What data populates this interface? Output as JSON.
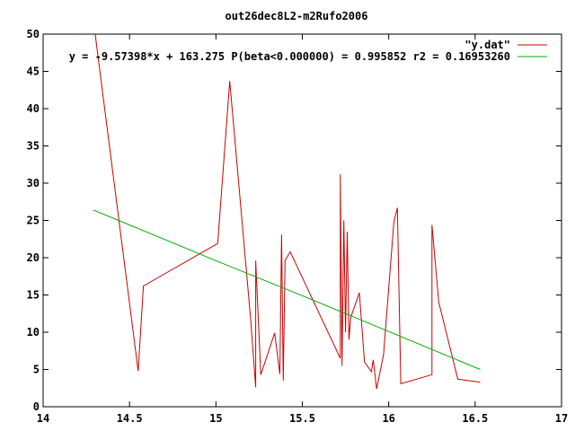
{
  "chart_data": {
    "type": "line",
    "title": "out26dec8L2-m2Rufo2006",
    "xlabel": "",
    "ylabel": "",
    "xlim": [
      14,
      17
    ],
    "ylim": [
      0,
      50
    ],
    "xticks": [
      {
        "v": 14,
        "label": "14"
      },
      {
        "v": 14.5,
        "label": "14.5"
      },
      {
        "v": 15,
        "label": "15"
      },
      {
        "v": 15.5,
        "label": "15.5"
      },
      {
        "v": 16,
        "label": "16"
      },
      {
        "v": 16.5,
        "label": "16.5"
      },
      {
        "v": 17,
        "label": "17"
      }
    ],
    "yticks": [
      {
        "v": 0,
        "label": "0"
      },
      {
        "v": 5,
        "label": "5"
      },
      {
        "v": 10,
        "label": "10"
      },
      {
        "v": 15,
        "label": "15"
      },
      {
        "v": 20,
        "label": "20"
      },
      {
        "v": 25,
        "label": "25"
      },
      {
        "v": 30,
        "label": "30"
      },
      {
        "v": 35,
        "label": "35"
      },
      {
        "v": 40,
        "label": "40"
      },
      {
        "v": 45,
        "label": "45"
      },
      {
        "v": 50,
        "label": "50"
      }
    ],
    "grid": false,
    "legend_position": "top-right",
    "series": [
      {
        "name": "\"y.dat\"",
        "color": "#cc0000",
        "points": [
          [
            14.29,
            52.0
          ],
          [
            14.55,
            4.8
          ],
          [
            14.58,
            16.2
          ],
          [
            15.01,
            21.9
          ],
          [
            15.08,
            43.7
          ],
          [
            15.2,
            12.0
          ],
          [
            15.23,
            2.6
          ],
          [
            15.23,
            19.6
          ],
          [
            15.26,
            4.3
          ],
          [
            15.34,
            9.9
          ],
          [
            15.37,
            4.4
          ],
          [
            15.38,
            23.1
          ],
          [
            15.39,
            3.5
          ],
          [
            15.4,
            19.6
          ],
          [
            15.43,
            20.8
          ],
          [
            15.72,
            6.5
          ],
          [
            15.72,
            31.2
          ],
          [
            15.73,
            5.5
          ],
          [
            15.74,
            25.0
          ],
          [
            15.75,
            10.0
          ],
          [
            15.76,
            23.5
          ],
          [
            15.77,
            9.0
          ],
          [
            15.78,
            12.0
          ],
          [
            15.83,
            15.3
          ],
          [
            15.86,
            6.0
          ],
          [
            15.9,
            4.7
          ],
          [
            15.91,
            6.3
          ],
          [
            15.93,
            2.4
          ],
          [
            15.97,
            7.0
          ],
          [
            16.03,
            24.8
          ],
          [
            16.05,
            26.7
          ],
          [
            16.07,
            3.1
          ],
          [
            16.25,
            4.3
          ],
          [
            16.25,
            24.4
          ],
          [
            16.29,
            14.0
          ],
          [
            16.4,
            3.7
          ],
          [
            16.53,
            3.3
          ]
        ]
      },
      {
        "name": "y = -9.57398*x + 163.275 P(beta<0.000000) = 0.995852 r2 = 0.16953260",
        "color": "#00aa00",
        "points": [
          [
            14.29,
            26.4
          ],
          [
            14.5,
            24.4
          ],
          [
            15.0,
            19.6
          ],
          [
            15.5,
            14.9
          ],
          [
            16.0,
            10.1
          ],
          [
            16.53,
            5.0
          ]
        ]
      }
    ]
  }
}
